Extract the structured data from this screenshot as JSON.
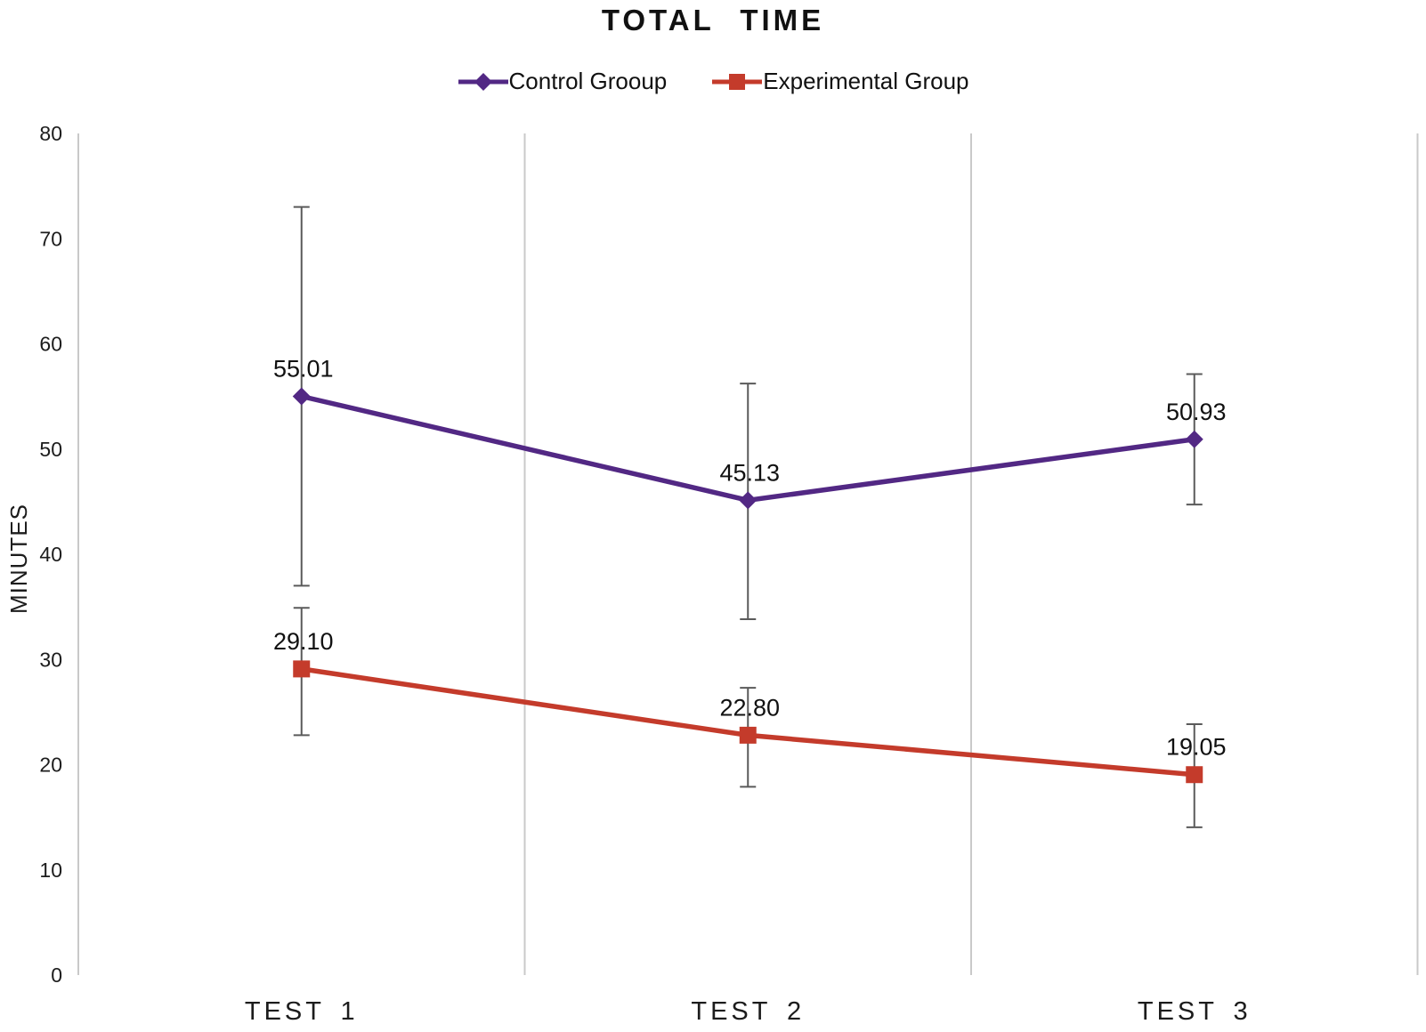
{
  "title": "TOTAL TIME",
  "legend": [
    {
      "label": "Control Grooup",
      "color": "#522884",
      "marker": "diamond"
    },
    {
      "label": "Experimental Group",
      "color": "#c43b2b",
      "marker": "square"
    }
  ],
  "chart_data": {
    "type": "line",
    "title": "TOTAL TIME",
    "categories": [
      "TEST 1",
      "TEST 2",
      "TEST 3"
    ],
    "series": [
      {
        "name": "Control Grooup",
        "color": "#522884",
        "marker": "diamond",
        "values": [
          55.01,
          45.13,
          50.93
        ],
        "labels": [
          "55.01",
          "45.13",
          "50.93"
        ],
        "error_plus": [
          18.0,
          11.1,
          6.2
        ],
        "error_minus": [
          18.0,
          11.3,
          6.2
        ]
      },
      {
        "name": "Experimental Group",
        "color": "#c43b2b",
        "marker": "square",
        "values": [
          29.1,
          22.8,
          19.05
        ],
        "labels": [
          "29.10",
          "22.80",
          "19.05"
        ],
        "error_plus": [
          5.8,
          4.5,
          4.8
        ],
        "error_minus": [
          6.3,
          4.9,
          5.0
        ]
      }
    ],
    "xlabel": "",
    "ylabel": "MINUTES",
    "ylim": [
      0,
      80
    ],
    "yticks": [
      0,
      10,
      20,
      30,
      40,
      50,
      60,
      70,
      80
    ],
    "grid": "vertical-category-boundaries",
    "legend_position": "top",
    "grid_color": "#c9c9c9",
    "error_bar_color": "#5a5a5a",
    "background": "#ffffff"
  }
}
